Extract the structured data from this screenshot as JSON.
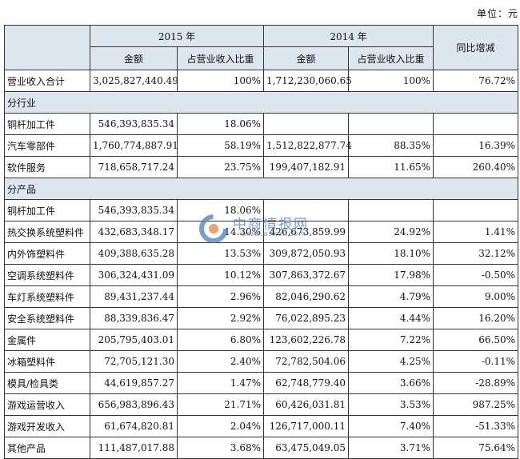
{
  "unit_label": "单位：元",
  "header": {
    "year_2015": "2015 年",
    "year_2014": "2014 年",
    "yoy": "同比增减",
    "amount": "金额",
    "share": "占营业收入比重"
  },
  "total": {
    "label": "营业收入合计",
    "a2015": "3,025,827,440.49",
    "s2015": "100%",
    "a2014": "1,712,230,060.65",
    "s2014": "100%",
    "yoy": "76.72%"
  },
  "section_industry": "分行业",
  "industry_rows": [
    {
      "label": "铜杆加工件",
      "a2015": "546,393,835.34",
      "s2015": "18.06%",
      "a2014": "",
      "s2014": "",
      "yoy": ""
    },
    {
      "label": "汽车零部件",
      "a2015": "1,760,774,887.91",
      "s2015": "58.19%",
      "a2014": "1,512,822,877.74",
      "s2014": "88.35%",
      "yoy": "16.39%"
    },
    {
      "label": "软件服务",
      "a2015": "718,658,717.24",
      "s2015": "23.75%",
      "a2014": "199,407,182.91",
      "s2014": "11.65%",
      "yoy": "260.40%"
    }
  ],
  "section_product": "分产品",
  "product_rows": [
    {
      "label": "铜杆加工件",
      "a2015": "546,393,835.34",
      "s2015": "18.06%",
      "a2014": "",
      "s2014": "",
      "yoy": ""
    },
    {
      "label": "热交换系统塑料件",
      "a2015": "432,683,348.17",
      "s2015": "14.30%",
      "a2014": "426,673,859.99",
      "s2014": "24.92%",
      "yoy": "1.41%"
    },
    {
      "label": "内外饰塑料件",
      "a2015": "409,388,635.28",
      "s2015": "13.53%",
      "a2014": "309,872,050.93",
      "s2014": "18.10%",
      "yoy": "32.12%"
    },
    {
      "label": "空调系统塑料件",
      "a2015": "306,324,431.09",
      "s2015": "10.12%",
      "a2014": "307,863,372.67",
      "s2014": "17.98%",
      "yoy": "-0.50%"
    },
    {
      "label": "车灯系统塑料件",
      "a2015": "89,431,237.44",
      "s2015": "2.96%",
      "a2014": "82,046,290.62",
      "s2014": "4.79%",
      "yoy": "9.00%"
    },
    {
      "label": "安全系统塑料件",
      "a2015": "88,339,836.47",
      "s2015": "2.92%",
      "a2014": "76,022,895.23",
      "s2014": "4.44%",
      "yoy": "16.20%"
    },
    {
      "label": "金属件",
      "a2015": "205,795,403.01",
      "s2015": "6.80%",
      "a2014": "123,602,226.78",
      "s2014": "7.22%",
      "yoy": "66.50%"
    },
    {
      "label": "冰箱塑料件",
      "a2015": "72,705,121.30",
      "s2015": "2.40%",
      "a2014": "72,782,504.06",
      "s2014": "4.25%",
      "yoy": "-0.11%"
    },
    {
      "label": "模具/检具类",
      "a2015": "44,619,857.27",
      "s2015": "1.47%",
      "a2014": "62,748,779.40",
      "s2014": "3.66%",
      "yoy": "-28.89%"
    },
    {
      "label": "游戏运营收入",
      "a2015": "656,983,896.43",
      "s2015": "21.71%",
      "a2014": "60,426,031.81",
      "s2014": "3.53%",
      "yoy": "987.25%"
    },
    {
      "label": "游戏开发收入",
      "a2015": "61,674,820.81",
      "s2015": "2.04%",
      "a2014": "126,717,000.11",
      "s2014": "7.40%",
      "yoy": "-51.33%"
    },
    {
      "label": "其他产品",
      "a2015": "111,487,017.88",
      "s2015": "3.68%",
      "a2014": "63,475,049.05",
      "s2014": "3.71%",
      "yoy": "75.64%"
    }
  ],
  "watermark": {
    "text": "中商情报网",
    "url": "www.askci.com"
  },
  "colors": {
    "header_bg": "#dde6ef",
    "border": "#333333",
    "watermark": "#4a7ebe"
  }
}
